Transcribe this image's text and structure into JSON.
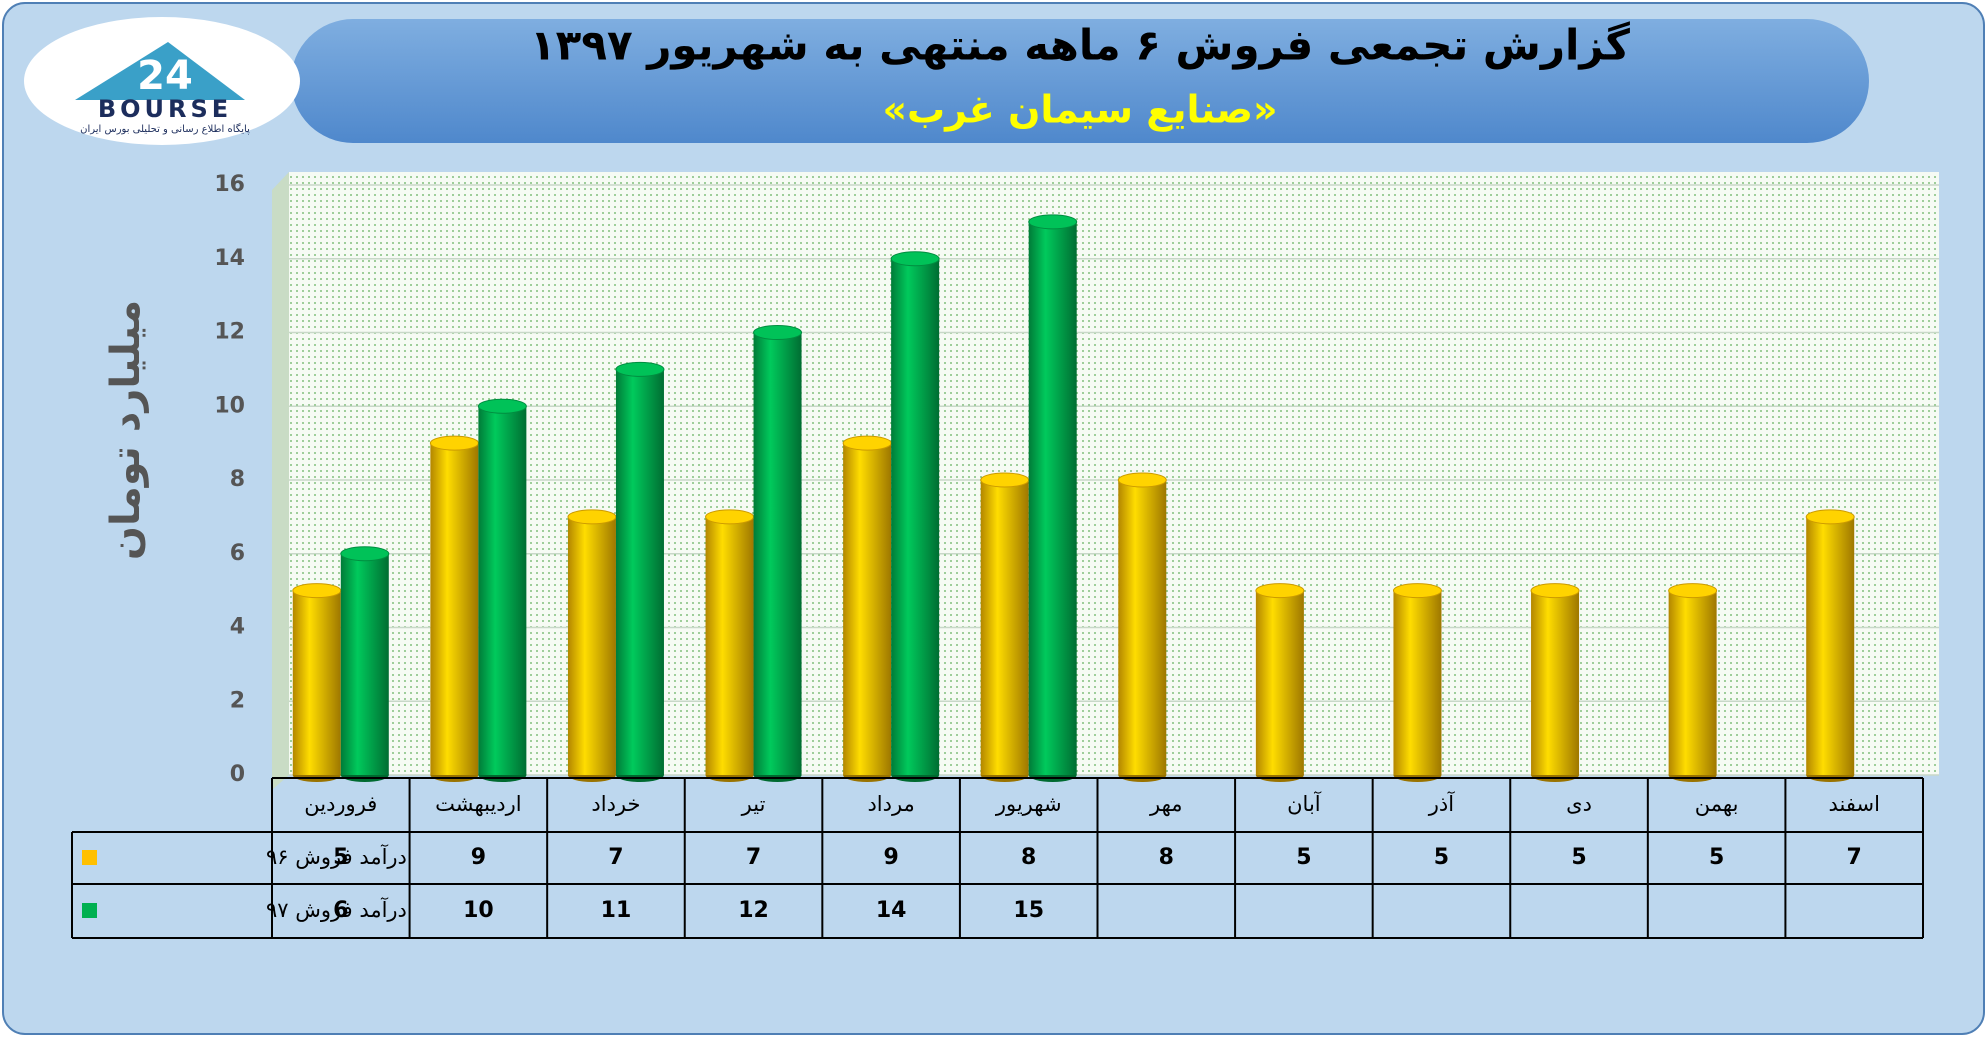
{
  "logo": {
    "number": "24",
    "name": "BOURSE",
    "tagline": "پایگاه اطلاع رسانی و تحلیلی بورس ایران"
  },
  "chart_data": {
    "type": "bar",
    "title": "گزارش تجمعی فروش ۶ ماهه منتهی به شهریور ۱۳۹۷",
    "subtitle": "«صنایع سیمان غرب»",
    "y_label": "میلیارد تومان",
    "categories": [
      "فروردین",
      "اردیبهشت",
      "خرداد",
      "تیر",
      "مرداد",
      "شهریور",
      "مهر",
      "آبان",
      "آذر",
      "دی",
      "بهمن",
      "اسفند"
    ],
    "series": [
      {
        "name": "درآمد فروش ۹۶",
        "color": "#ffc000",
        "values": [
          5,
          9,
          7,
          7,
          9,
          8,
          8,
          5,
          5,
          5,
          5,
          7
        ]
      },
      {
        "name": "درآمد فروش ۹۷",
        "color": "#00b050",
        "values": [
          6,
          10,
          11,
          12,
          14,
          15,
          null,
          null,
          null,
          null,
          null,
          null
        ]
      }
    ],
    "ylim": [
      0,
      16
    ],
    "yticks": [
      0,
      2,
      4,
      6,
      8,
      10,
      12,
      14,
      16
    ],
    "grid": true
  }
}
